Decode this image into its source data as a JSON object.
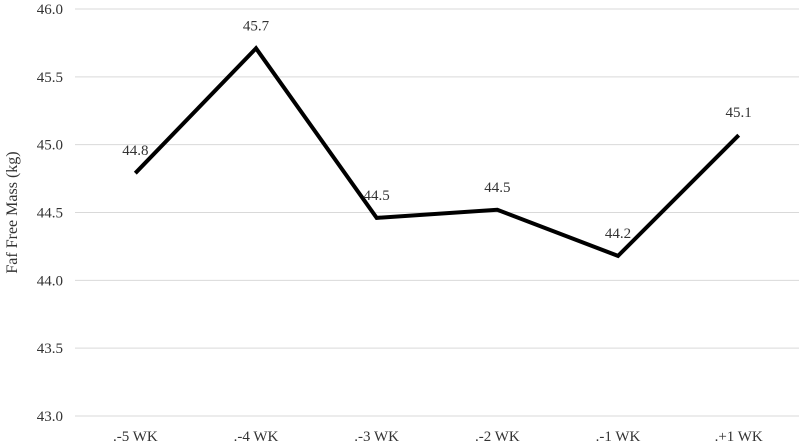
{
  "chart_data": {
    "type": "line",
    "title": "",
    "xlabel": "",
    "ylabel": "Faf Free Mass (kg)",
    "categories": [
      ".-5 WK",
      ".-4 WK",
      ".-3 WK",
      ".-2 WK",
      ".-1 WK",
      ".+1 WK"
    ],
    "series": [
      {
        "values": [
          44.79,
          45.71,
          44.46,
          44.52,
          44.18,
          45.07
        ],
        "labels": [
          "44.8",
          "45.7",
          "44.5",
          "44.5",
          "44.2",
          "45.1"
        ],
        "color": "#000000"
      }
    ],
    "ylim": [
      43.0,
      46.0
    ],
    "yticks": [
      "43.0",
      "43.5",
      "44.0",
      "44.5",
      "45.0",
      "45.5",
      "46.0"
    ],
    "grid": true,
    "legend": "none",
    "colors": {
      "line": "#000000",
      "grid": "#d9d9d9",
      "text": "#333333"
    }
  }
}
